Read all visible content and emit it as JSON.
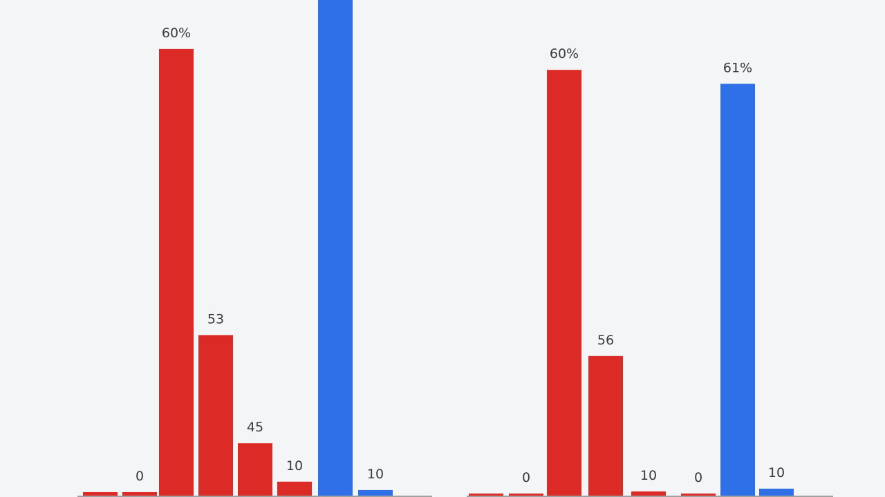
{
  "colors": {
    "background": "#f4f5f6",
    "red_series": "#dc2b27",
    "blue_series": "#2f6fe8",
    "baseline": "#4a4a4a"
  },
  "chart_data": [
    {
      "type": "bar",
      "grid": false,
      "legend": "none",
      "ylim": [
        0,
        72
      ],
      "bars": [
        {
          "value": 0.5,
          "color": "red",
          "label": ""
        },
        {
          "value": 0.5,
          "color": "red",
          "label": "0"
        },
        {
          "value": 64,
          "color": "red",
          "label": "60%"
        },
        {
          "value": 23,
          "color": "red",
          "label": "53"
        },
        {
          "value": 7.5,
          "color": "red",
          "label": "45"
        },
        {
          "value": 2,
          "color": "red",
          "label": "10"
        },
        {
          "value": 72,
          "color": "blue",
          "label": ""
        },
        {
          "value": 0.8,
          "color": "blue",
          "label": "10"
        }
      ]
    },
    {
      "type": "bar",
      "grid": false,
      "legend": "none",
      "ylim": [
        0,
        72
      ],
      "bars": [
        {
          "value": 0.3,
          "color": "red",
          "label": ""
        },
        {
          "value": 0.3,
          "color": "red",
          "label": "0"
        },
        {
          "value": 61,
          "color": "red",
          "label": "60%"
        },
        {
          "value": 20,
          "color": "red",
          "label": "56"
        },
        {
          "value": 0.6,
          "color": "red",
          "label": "10"
        },
        {
          "value": 0.3,
          "color": "red",
          "label": "0"
        },
        {
          "value": 59,
          "color": "blue",
          "label": "61%"
        },
        {
          "value": 1,
          "color": "blue",
          "label": "10"
        }
      ]
    }
  ]
}
